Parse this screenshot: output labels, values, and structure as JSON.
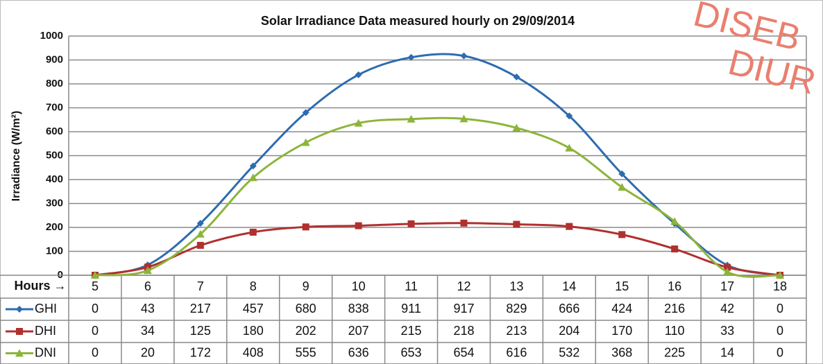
{
  "chart_data": {
    "type": "line",
    "title": "Solar Irradiance Data measured hourly on 29/09/2014",
    "y_label": "Irradiance (W/m²)",
    "x_label": "Hours →",
    "categories": [
      "5",
      "6",
      "7",
      "8",
      "9",
      "10",
      "11",
      "12",
      "13",
      "14",
      "15",
      "16",
      "17",
      "18"
    ],
    "series": [
      {
        "name": "GHI",
        "color": "#2e6bb0",
        "marker": "diamond",
        "values": [
          0,
          43,
          217,
          457,
          680,
          838,
          911,
          917,
          829,
          666,
          424,
          216,
          42,
          0
        ]
      },
      {
        "name": "DHI",
        "color": "#b0302e",
        "marker": "square",
        "values": [
          0,
          34,
          125,
          180,
          202,
          207,
          215,
          218,
          213,
          204,
          170,
          110,
          33,
          0
        ]
      },
      {
        "name": "DNI",
        "color": "#8db43a",
        "marker": "triangle",
        "values": [
          0,
          20,
          172,
          408,
          555,
          636,
          653,
          654,
          616,
          532,
          368,
          225,
          14,
          0
        ]
      }
    ],
    "ylim": [
      0,
      1000
    ],
    "yticks": [
      0,
      100,
      200,
      300,
      400,
      500,
      600,
      700,
      800,
      900,
      1000
    ],
    "grid": true,
    "watermark": [
      "DISEB",
      "DIUR"
    ]
  }
}
